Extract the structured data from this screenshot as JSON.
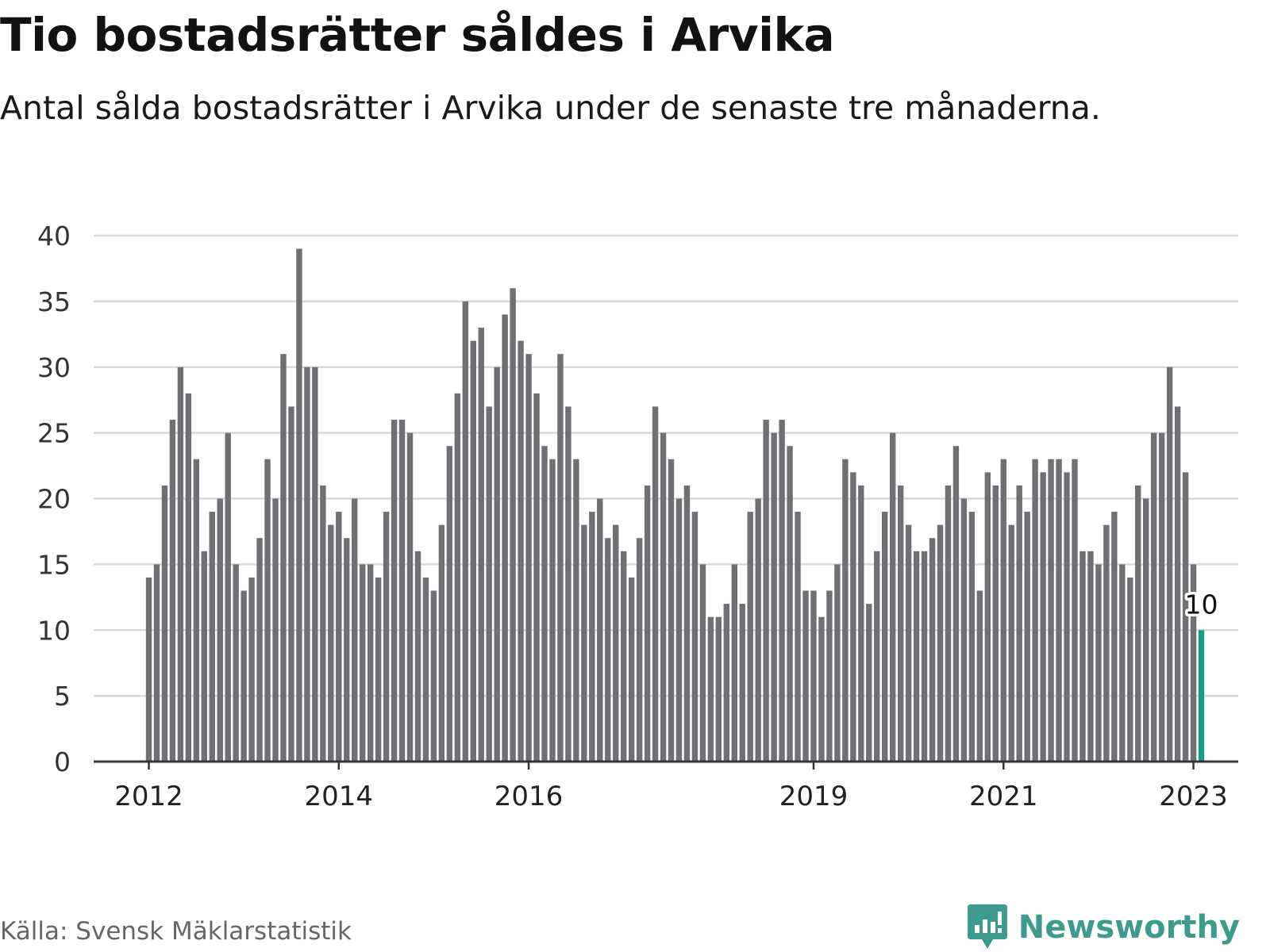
{
  "title": "Tio bostadsrätter såldes i Arvika",
  "subtitle": "Antal sålda bostadsrätter i Arvika under de senaste tre månaderna.",
  "source": "Källa: Svensk Mäklarstatistik",
  "brand": {
    "name": "Newsworthy",
    "icon": "newsworthy-logo-icon"
  },
  "colors": {
    "bar": "#707074",
    "highlight": "#1a9c8c",
    "grid": "#d9d9d9",
    "axis": "#333333",
    "brand": "#3d9b8e"
  },
  "chart_data": {
    "type": "bar",
    "title": "Tio bostadsrätter såldes i Arvika",
    "xlabel": "",
    "ylabel": "",
    "ylim": [
      0,
      40
    ],
    "yticks": [
      0,
      5,
      10,
      15,
      20,
      25,
      30,
      35,
      40
    ],
    "grid": true,
    "start": "2012-01",
    "values": [
      14,
      15,
      21,
      26,
      30,
      28,
      23,
      16,
      19,
      20,
      25,
      15,
      13,
      14,
      17,
      23,
      20,
      31,
      27,
      39,
      30,
      30,
      21,
      18,
      19,
      17,
      20,
      15,
      15,
      14,
      19,
      26,
      26,
      25,
      16,
      14,
      13,
      18,
      24,
      28,
      35,
      32,
      33,
      27,
      30,
      34,
      36,
      32,
      31,
      28,
      24,
      23,
      31,
      27,
      23,
      18,
      19,
      20,
      17,
      18,
      16,
      14,
      17,
      21,
      27,
      25,
      23,
      20,
      21,
      19,
      15,
      11,
      11,
      12,
      15,
      12,
      19,
      20,
      26,
      25,
      26,
      24,
      19,
      13,
      13,
      11,
      13,
      15,
      23,
      22,
      21,
      12,
      16,
      19,
      25,
      21,
      18,
      16,
      16,
      17,
      18,
      21,
      24,
      20,
      19,
      13,
      22,
      21,
      23,
      18,
      21,
      19,
      23,
      22,
      23,
      23,
      22,
      23,
      16,
      16,
      15,
      18,
      19,
      15,
      14,
      21,
      20,
      25,
      25,
      30,
      27,
      22,
      15,
      10
    ],
    "highlight": {
      "index": 133,
      "label": "10"
    },
    "xticks": [
      {
        "label": "2012",
        "index": 0
      },
      {
        "label": "2014",
        "index": 24
      },
      {
        "label": "2016",
        "index": 48
      },
      {
        "label": "2019",
        "index": 84
      },
      {
        "label": "2021",
        "index": 108
      },
      {
        "label": "2023",
        "index": 132
      }
    ]
  }
}
